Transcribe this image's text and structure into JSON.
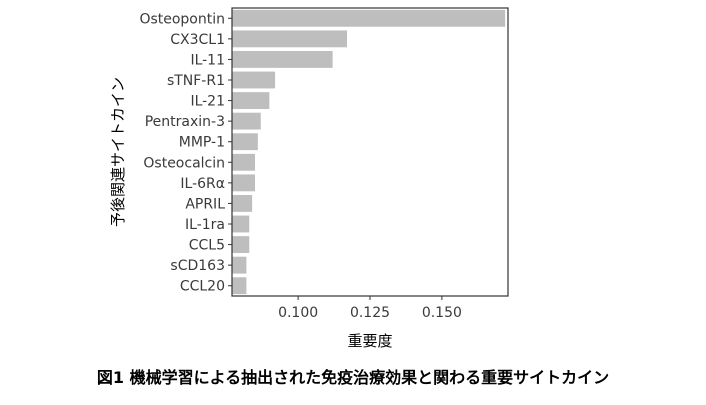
{
  "chart_data": {
    "type": "bar",
    "orientation": "horizontal",
    "categories": [
      "Osteopontin",
      "CX3CL1",
      "IL-11",
      "sTNF-R1",
      "IL-21",
      "Pentraxin-3",
      "MMP-1",
      "Osteocalcin",
      "IL-6Rα",
      "APRIL",
      "IL-1ra",
      "CCL5",
      "sCD163",
      "CCL20"
    ],
    "values": [
      0.172,
      0.117,
      0.112,
      0.092,
      0.09,
      0.087,
      0.086,
      0.085,
      0.085,
      0.084,
      0.083,
      0.083,
      0.082,
      0.082
    ],
    "xlabel": "重要度",
    "ylabel": "予後関連サイトカイン",
    "xlim": [
      0.077,
      0.173
    ],
    "xticks": [
      0.1,
      0.125,
      0.15
    ],
    "xtick_labels": [
      "0.100",
      "0.125",
      "0.150"
    ],
    "grid": false,
    "bar_color": "#bebebe"
  },
  "caption": "図1  機械学習による抽出された免疫治療効果と関わる重要サイトカイン"
}
